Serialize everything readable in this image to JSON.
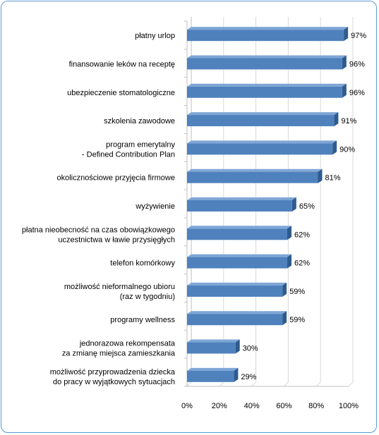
{
  "chart_data": {
    "type": "bar",
    "orientation": "horizontal",
    "bar_style": "3d",
    "grid": true,
    "legend": "none",
    "colors": {
      "bar": "#4f81bd",
      "bar_top": "#7ea6d6",
      "bar_side": "#2e5b8e",
      "frame": "#5b9bd5",
      "grid": "#d9d9d9"
    },
    "categories": [
      [
        "płatny urlop"
      ],
      [
        "finansowanie leków na receptę"
      ],
      [
        "ubezpieczenie stomatologiczne"
      ],
      [
        "szkolenia zawodowe"
      ],
      [
        "program emerytalny",
        "- Defined Contribution Plan"
      ],
      [
        "okolicznościowe przyjęcia firmowe"
      ],
      [
        "wyżywienie"
      ],
      [
        "płatna nieobecność na czas obowiązkowego",
        "uczestnictwa w ławie przysięgłych"
      ],
      [
        "telefon komórkowy"
      ],
      [
        "możliwość nieformalnego ubioru",
        "(raz w tygodniu)"
      ],
      [
        "programy wellness"
      ],
      [
        "jednorazowa rekompensata",
        "za zmianę miejsca zamieszkania"
      ],
      [
        "możliwość przyprowadzenia dziecka",
        "do pracy w wyjątkowych sytuacjach"
      ]
    ],
    "values": [
      97,
      96,
      96,
      91,
      90,
      81,
      65,
      62,
      62,
      59,
      59,
      30,
      29
    ],
    "value_labels": [
      "97%",
      "96%",
      "96%",
      "91%",
      "90%",
      "81%",
      "65%",
      "62%",
      "62%",
      "59%",
      "59%",
      "30%",
      "29%"
    ],
    "xlim": [
      0,
      100
    ],
    "xticks": [
      0,
      20,
      40,
      60,
      80,
      100
    ],
    "xtick_labels": [
      "0%",
      "20%",
      "40%",
      "60%",
      "80%",
      "100%"
    ]
  }
}
